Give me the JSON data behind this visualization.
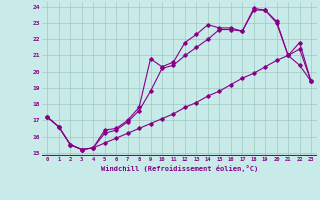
{
  "xlabel": "Windchill (Refroidissement éolien,°C)",
  "background_color": "#c8eae8",
  "grid_color": "#a0c8c0",
  "line_color": "#880088",
  "xlim": [
    -0.5,
    23.5
  ],
  "ylim": [
    14.8,
    24.3
  ],
  "yticks": [
    15,
    16,
    17,
    18,
    19,
    20,
    21,
    22,
    23,
    24
  ],
  "xticks": [
    0,
    1,
    2,
    3,
    4,
    5,
    6,
    7,
    8,
    9,
    10,
    11,
    12,
    13,
    14,
    15,
    16,
    17,
    18,
    19,
    20,
    21,
    22,
    23
  ],
  "line1_x": [
    0,
    1,
    2,
    3,
    4,
    5,
    6,
    7,
    8,
    9,
    10,
    11,
    12,
    13,
    14,
    15,
    16,
    17,
    18,
    19,
    20,
    21,
    22,
    23
  ],
  "line1_y": [
    17.2,
    16.6,
    15.5,
    15.2,
    15.3,
    16.4,
    16.5,
    17.0,
    17.8,
    20.8,
    20.3,
    20.6,
    21.8,
    22.3,
    22.9,
    22.7,
    22.7,
    22.5,
    23.9,
    23.8,
    23.1,
    21.0,
    20.4,
    19.4
  ],
  "line2_x": [
    0,
    1,
    2,
    3,
    4,
    5,
    6,
    7,
    8,
    9,
    10,
    11,
    12,
    13,
    14,
    15,
    16,
    17,
    18,
    19,
    20,
    21,
    22,
    23
  ],
  "line2_y": [
    17.2,
    16.6,
    15.5,
    15.2,
    15.3,
    16.2,
    16.4,
    16.9,
    17.6,
    18.8,
    20.2,
    20.4,
    21.0,
    21.5,
    22.0,
    22.6,
    22.6,
    22.5,
    23.8,
    23.8,
    23.0,
    21.0,
    21.8,
    19.4
  ],
  "line3_x": [
    0,
    1,
    2,
    3,
    4,
    5,
    6,
    7,
    8,
    9,
    10,
    11,
    12,
    13,
    14,
    15,
    16,
    17,
    18,
    19,
    20,
    21,
    22,
    23
  ],
  "line3_y": [
    17.2,
    16.6,
    15.5,
    15.2,
    15.3,
    15.6,
    15.9,
    16.2,
    16.5,
    16.8,
    17.1,
    17.4,
    17.8,
    18.1,
    18.5,
    18.8,
    19.2,
    19.6,
    19.9,
    20.3,
    20.7,
    21.0,
    21.4,
    19.4
  ]
}
